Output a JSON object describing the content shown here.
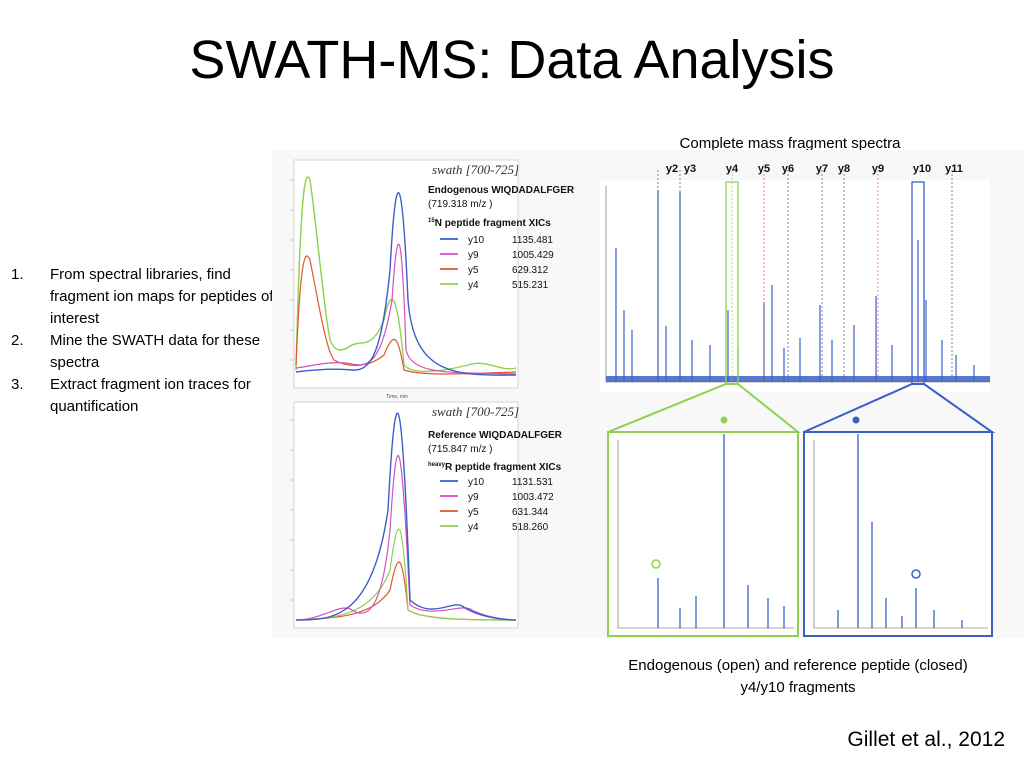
{
  "title": "SWATH-MS: Data Analysis",
  "steps": [
    {
      "n": "1.",
      "text": "From spectral libraries, find fragment ion maps for peptides of interest"
    },
    {
      "n": "2.",
      "text": "Mine the SWATH data for these spectra"
    },
    {
      "n": "3.",
      "text": "Extract fragment ion traces for quantification"
    }
  ],
  "figure": {
    "top_caption": "Complete mass fragment spectra",
    "bottom_caption_line1": "Endogenous (open) and reference peptide (closed)",
    "bottom_caption_line2": "y4/y10 fragments",
    "ion_labels": [
      "y2",
      "y3",
      "y4",
      "y5",
      "y6",
      "y7",
      "y8",
      "y9",
      "y10",
      "y11"
    ],
    "xic_top": {
      "window": "swath [700-725]",
      "peptide": "Endogenous WIQDADALFGER",
      "mz": "(719.318 m/z )",
      "sup": "15",
      "label": "N peptide fragment XICs",
      "legend": [
        {
          "ion": "y10",
          "mz": "1135.481",
          "color": "#3b5fc9"
        },
        {
          "ion": "y9",
          "mz": "1005.429",
          "color": "#d64fc4"
        },
        {
          "ion": "y5",
          "mz": "629.312",
          "color": "#e2572b"
        },
        {
          "ion": "y4",
          "mz": "515.231",
          "color": "#8fd14f"
        }
      ]
    },
    "xic_bottom": {
      "window": "swath [700-725]",
      "peptide": "Reference WIQDADALFGER",
      "mz": "(715.847 m/z )",
      "sup": "heavy",
      "label": "R peptide fragment XICs",
      "legend": [
        {
          "ion": "y10",
          "mz": "1131.531",
          "color": "#3b5fc9"
        },
        {
          "ion": "y9",
          "mz": "1003.472",
          "color": "#d64fc4"
        },
        {
          "ion": "y5",
          "mz": "631.344",
          "color": "#e2572b"
        },
        {
          "ion": "y4",
          "mz": "518.260",
          "color": "#8fd14f"
        }
      ]
    },
    "axis_label": "Time, min"
  },
  "citation": "Gillet et al., 2012",
  "colors": {
    "blue": "#3b5fc9",
    "green": "#8fd14f",
    "magenta": "#d64fc4",
    "orange": "#e2572b"
  }
}
